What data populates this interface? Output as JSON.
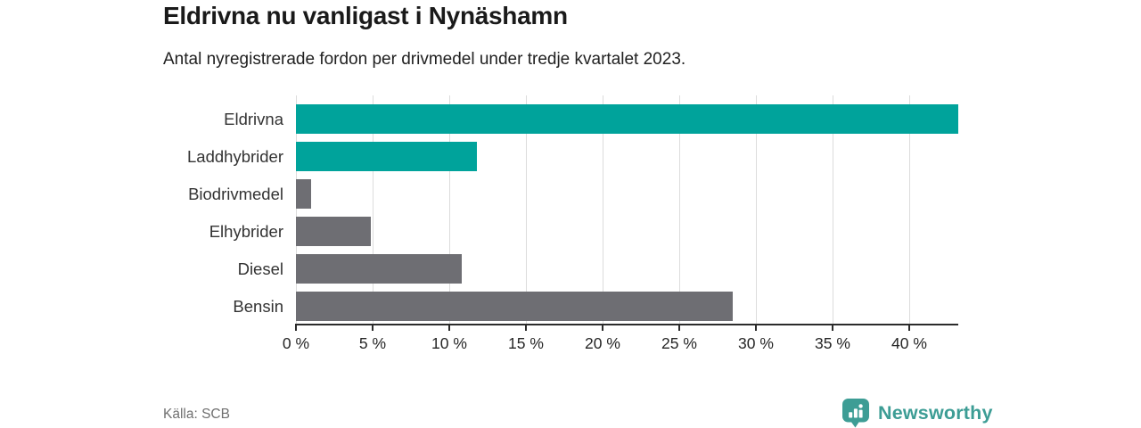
{
  "header": {
    "title": "Eldrivna nu vanligast i Nynäshamn",
    "subtitle": "Antal nyregistrerade fordon per drivmedel under tredje kvartalet 2023."
  },
  "chart_data": {
    "type": "bar",
    "orientation": "horizontal",
    "title": "Eldrivna nu vanligast i Nynäshamn",
    "subtitle": "Antal nyregistrerade fordon per drivmedel under tredje kvartalet 2023.",
    "categories": [
      "Eldrivna",
      "Laddhybrider",
      "Biodrivmedel",
      "Elhybrider",
      "Diesel",
      "Bensin"
    ],
    "values": [
      43.2,
      11.8,
      1.0,
      4.9,
      10.8,
      28.5
    ],
    "unit": "%",
    "bar_colors": [
      "#00a39b",
      "#00a39b",
      "#6e6e73",
      "#6e6e73",
      "#6e6e73",
      "#6e6e73"
    ],
    "highlight_color": "#00a39b",
    "default_color": "#6e6e73",
    "xlim": [
      0,
      43.2
    ],
    "tick_values": [
      0,
      5,
      10,
      15,
      20,
      25,
      30,
      35,
      40
    ],
    "tick_labels": [
      "0 %",
      "5 %",
      "10 %",
      "15 %",
      "20 %",
      "25 %",
      "30 %",
      "35 %",
      "40 %"
    ],
    "grid": "vertical",
    "gridline_color": "#dcdcdc",
    "axis_color": "#2b2b2b",
    "legend": "none"
  },
  "footer": {
    "source": "Källa: SCB",
    "brand": "Newsworthy",
    "brand_color": "#3d9d95"
  }
}
